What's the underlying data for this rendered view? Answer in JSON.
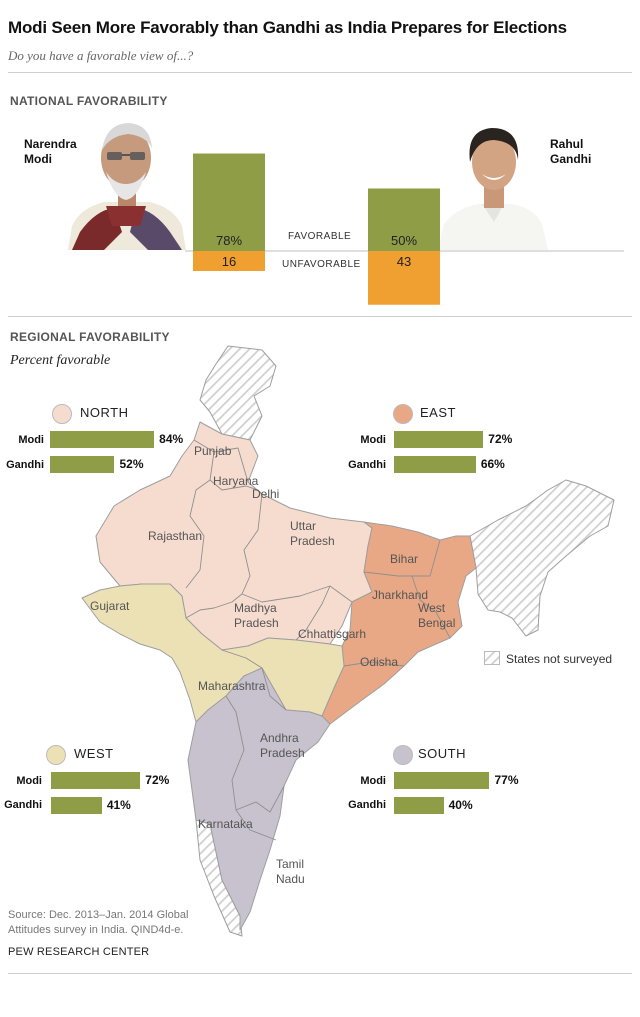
{
  "title": "Modi Seen More Favorably than Gandhi as India Prepares for Elections",
  "subtitle": "Do you have a favorable view of...?",
  "national": {
    "header": "NATIONAL FAVORABILITY",
    "favorable_label": "FAVORABLE",
    "unfavorable_label": "UNFAVORABLE"
  },
  "regional": {
    "header": "REGIONAL FAVORABILITY",
    "subheader": "Percent favorable",
    "legend_not_surveyed": "States not surveyed",
    "row_labels": {
      "modi": "Modi",
      "gandhi": "Gandhi"
    }
  },
  "chart_data": [
    {
      "type": "bar",
      "title": "NATIONAL FAVORABILITY",
      "categories": [
        "Narendra Modi",
        "Rahul Gandhi"
      ],
      "category_labels": [
        [
          "Narendra",
          "Modi"
        ],
        [
          "Rahul",
          "Gandhi"
        ]
      ],
      "series": [
        {
          "name": "FAVORABLE",
          "values": [
            78,
            50
          ],
          "labels": [
            "78%",
            "50%"
          ],
          "color": "#8f9d47"
        },
        {
          "name": "UNFAVORABLE",
          "values": [
            16,
            43
          ],
          "labels": [
            "16",
            "43"
          ],
          "color": "#f0a030"
        }
      ]
    },
    {
      "type": "bar",
      "title": "REGIONAL FAVORABILITY",
      "subtitle": "Percent favorable",
      "groups": [
        {
          "region": "NORTH",
          "color": "#f6dccf",
          "modi": 84,
          "gandhi": 52,
          "modi_label": "84%",
          "gandhi_label": "52%"
        },
        {
          "region": "EAST",
          "color": "#e9a885",
          "modi": 72,
          "gandhi": 66,
          "modi_label": "72%",
          "gandhi_label": "66%"
        },
        {
          "region": "WEST",
          "color": "#ece1b4",
          "modi": 72,
          "gandhi": 41,
          "modi_label": "72%",
          "gandhi_label": "41%"
        },
        {
          "region": "SOUTH",
          "color": "#c8c2cf",
          "modi": 77,
          "gandhi": 40,
          "modi_label": "77%",
          "gandhi_label": "40%"
        }
      ],
      "bar_color": "#8f9d47"
    }
  ],
  "map": {
    "colors": {
      "north": "#f6dccf",
      "east": "#e9a885",
      "west": "#ece1b4",
      "south": "#c8c2cf",
      "hatch": "#c9c9c9",
      "border": "#9e9e9e"
    },
    "state_labels": [
      "Punjab",
      "Haryana",
      "Delhi",
      "Rajasthan",
      "Uttar",
      "Pradesh",
      "Bihar",
      "Jharkhand",
      "West",
      "Bengal",
      "Gujarat",
      "Madhya",
      "Pradesh",
      "Chhattisgarh",
      "Odisha",
      "Maharashtra",
      "Andhra",
      "Pradesh",
      "Karnataka",
      "Tamil",
      "Nadu"
    ]
  },
  "source": "Source: Dec. 2013–Jan. 2014 Global Attitudes survey in India. QIND4d-e.",
  "org": "PEW RESEARCH CENTER"
}
